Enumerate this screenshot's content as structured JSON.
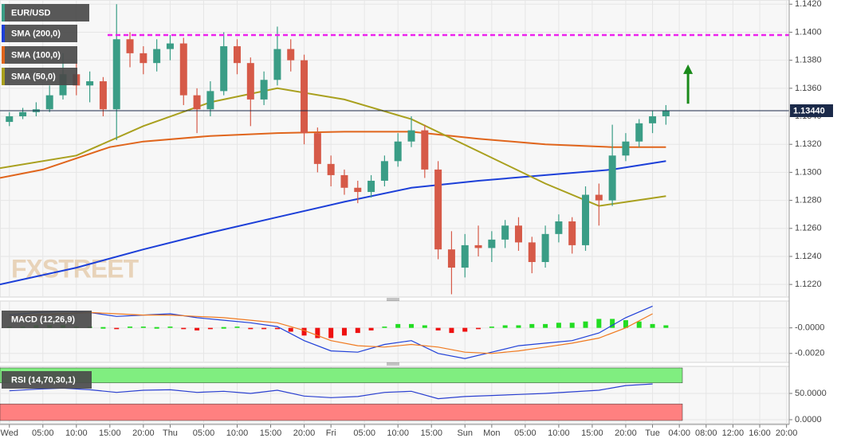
{
  "chart_data": [
    {
      "type": "candlestick",
      "symbol": "EUR/USD",
      "watermark": "FXSTREET",
      "xlim": [
        -1.4,
        116.4
      ],
      "xticks": [
        {
          "value": 0,
          "label": "Wed"
        },
        {
          "value": 5,
          "label": "05:00"
        },
        {
          "value": 10,
          "label": "10:00"
        },
        {
          "value": 15,
          "label": "15:00"
        },
        {
          "value": 20,
          "label": "20:00"
        },
        {
          "value": 24,
          "label": "Thu"
        },
        {
          "value": 29,
          "label": "05:00"
        },
        {
          "value": 34,
          "label": "10:00"
        },
        {
          "value": 39,
          "label": "15:00"
        },
        {
          "value": 44,
          "label": "20:00"
        },
        {
          "value": 48,
          "label": "Fri"
        },
        {
          "value": 53,
          "label": "05:00"
        },
        {
          "value": 58,
          "label": "10:00"
        },
        {
          "value": 63,
          "label": "15:00"
        },
        {
          "value": 68,
          "label": "Sun"
        },
        {
          "value": 72,
          "label": "Mon"
        },
        {
          "value": 77,
          "label": "05:00"
        },
        {
          "value": 82,
          "label": "10:00"
        },
        {
          "value": 87,
          "label": "15:00"
        },
        {
          "value": 92,
          "label": "20:00"
        },
        {
          "value": 96,
          "label": "Tue"
        },
        {
          "value": 100,
          "label": "04:00"
        },
        {
          "value": 104,
          "label": "08:00"
        },
        {
          "value": 108,
          "label": "12:00"
        },
        {
          "value": 112,
          "label": "16:00"
        },
        {
          "value": 116,
          "label": "20:00"
        }
      ],
      "ylim": [
        1.1211,
        1.1423
      ],
      "yticks": [
        {
          "value": 1.122,
          "label": "1.1220"
        },
        {
          "value": 1.124,
          "label": "1.1240"
        },
        {
          "value": 1.126,
          "label": "1.1260"
        },
        {
          "value": 1.128,
          "label": "1.1280"
        },
        {
          "value": 1.13,
          "label": "1.1300"
        },
        {
          "value": 1.132,
          "label": "1.1320"
        },
        {
          "value": 1.134,
          "label": "1.1340"
        },
        {
          "value": 1.136,
          "label": "1.1360"
        },
        {
          "value": 1.138,
          "label": "1.1380"
        },
        {
          "value": 1.14,
          "label": "1.1400"
        },
        {
          "value": 1.142,
          "label": "1.1420"
        }
      ],
      "grid": true,
      "candles": {
        "up_color": "#3a9d86",
        "down_color": "#d65a48",
        "x": [
          0,
          2,
          4,
          6,
          8,
          10,
          12,
          14,
          16,
          18,
          20,
          22,
          24,
          26,
          28,
          30,
          32,
          34,
          36,
          38,
          40,
          42,
          44,
          46,
          48,
          50,
          52,
          54,
          56,
          58,
          60,
          62,
          64,
          66,
          68,
          70,
          72,
          74,
          76,
          78,
          80,
          82,
          84,
          86,
          88,
          90,
          92,
          94,
          96,
          98
        ],
        "open": [
          1.1336,
          1.134,
          1.1343,
          1.1345,
          1.1355,
          1.137,
          1.1362,
          1.1365,
          1.1345,
          1.1395,
          1.1385,
          1.1378,
          1.1388,
          1.1392,
          1.1355,
          1.1345,
          1.1358,
          1.139,
          1.1378,
          1.1352,
          1.1366,
          1.1388,
          1.138,
          1.1328,
          1.1306,
          1.1298,
          1.1289,
          1.1286,
          1.1294,
          1.1308,
          1.1322,
          1.133,
          1.1302,
          1.1245,
          1.1232,
          1.1248,
          1.1246,
          1.1252,
          1.1262,
          1.125,
          1.1236,
          1.1256,
          1.1265,
          1.1248,
          1.1284,
          1.128,
          1.1312,
          1.1322,
          1.1335,
          1.134
        ],
        "high": [
          1.1343,
          1.1346,
          1.135,
          1.1362,
          1.1385,
          1.1378,
          1.1372,
          1.1368,
          1.142,
          1.14,
          1.139,
          1.1395,
          1.1398,
          1.1396,
          1.136,
          1.1365,
          1.14,
          1.1395,
          1.1382,
          1.1372,
          1.1404,
          1.1395,
          1.1384,
          1.1332,
          1.1312,
          1.1302,
          1.1294,
          1.1298,
          1.1312,
          1.1328,
          1.134,
          1.1334,
          1.1308,
          1.1258,
          1.1256,
          1.1262,
          1.1258,
          1.1266,
          1.1268,
          1.1254,
          1.1262,
          1.127,
          1.1268,
          1.129,
          1.1292,
          1.1334,
          1.1328,
          1.1338,
          1.1344,
          1.1348
        ],
        "low": [
          1.1333,
          1.1338,
          1.134,
          1.1343,
          1.1352,
          1.1355,
          1.135,
          1.134,
          1.1323,
          1.1375,
          1.137,
          1.1372,
          1.138,
          1.1348,
          1.1328,
          1.134,
          1.1355,
          1.137,
          1.1333,
          1.1348,
          1.1362,
          1.1372,
          1.132,
          1.13,
          1.129,
          1.1284,
          1.1278,
          1.1282,
          1.129,
          1.1304,
          1.1318,
          1.1296,
          1.1238,
          1.1213,
          1.1225,
          1.124,
          1.1236,
          1.1246,
          1.1244,
          1.1228,
          1.1232,
          1.125,
          1.1242,
          1.1244,
          1.1262,
          1.1276,
          1.1308,
          1.1318,
          1.1328,
          1.1334
        ],
        "close": [
          1.134,
          1.1343,
          1.1345,
          1.1355,
          1.137,
          1.1362,
          1.1365,
          1.1345,
          1.1395,
          1.1385,
          1.1378,
          1.1388,
          1.1392,
          1.1355,
          1.1345,
          1.1358,
          1.139,
          1.1378,
          1.1352,
          1.1366,
          1.1388,
          1.138,
          1.1328,
          1.1306,
          1.1298,
          1.1289,
          1.1286,
          1.1294,
          1.1308,
          1.1322,
          1.133,
          1.1302,
          1.1245,
          1.1232,
          1.1248,
          1.1246,
          1.1252,
          1.1262,
          1.125,
          1.1236,
          1.1256,
          1.1265,
          1.1248,
          1.1284,
          1.128,
          1.1312,
          1.1322,
          1.1335,
          1.134,
          1.1344
        ]
      },
      "series": [
        {
          "name": "SMA (200,0)",
          "color": "#1c3fd8",
          "x": [
            -1.4,
            10,
            20,
            30,
            40,
            50,
            60,
            70,
            80,
            90,
            98
          ],
          "values": [
            1.122,
            1.1232,
            1.1245,
            1.1257,
            1.1268,
            1.1279,
            1.1289,
            1.1294,
            1.1298,
            1.1302,
            1.1308
          ]
        },
        {
          "name": "SMA (100,0)",
          "color": "#e0651c",
          "x": [
            -1.4,
            5,
            10,
            15,
            20,
            30,
            40,
            50,
            60,
            70,
            80,
            90,
            98
          ],
          "values": [
            1.1296,
            1.1302,
            1.131,
            1.1318,
            1.1322,
            1.1326,
            1.1328,
            1.1329,
            1.1329,
            1.1324,
            1.132,
            1.1318,
            1.1318
          ]
        },
        {
          "name": "SMA (50,0)",
          "color": "#a9a01e",
          "x": [
            -1.4,
            10,
            20,
            30,
            40,
            50,
            60,
            70,
            80,
            88,
            98
          ],
          "values": [
            1.1303,
            1.1312,
            1.1333,
            1.135,
            1.136,
            1.1352,
            1.1338,
            1.1315,
            1.1292,
            1.1276,
            1.1283
          ]
        }
      ],
      "last_price": {
        "value": 1.1344,
        "label": "1.13440",
        "color": "#1b2a4a"
      },
      "resistance": {
        "value": 1.1398,
        "color": "#ee22ee"
      },
      "arrow": {
        "x": 101.3,
        "values": [
          1.1349,
          1.1377
        ],
        "color": "#1a8a1a"
      }
    },
    {
      "type": "macd",
      "title": "MACD (12,26,9)",
      "ylim": [
        -0.0027,
        0.0021
      ],
      "yticks": [
        {
          "value": 0,
          "label": "-0.0000"
        },
        {
          "value": -0.002,
          "label": "-0.0020"
        }
      ],
      "histogram": {
        "up_color": "#22dd22",
        "down_color": "#ee1111",
        "x": [
          0,
          2,
          4,
          6,
          8,
          10,
          12,
          14,
          16,
          18,
          20,
          22,
          24,
          26,
          28,
          30,
          32,
          34,
          36,
          38,
          40,
          42,
          44,
          46,
          48,
          50,
          52,
          54,
          56,
          58,
          60,
          62,
          64,
          66,
          68,
          70,
          72,
          74,
          76,
          78,
          80,
          82,
          84,
          86,
          88,
          90,
          92,
          94,
          96,
          98
        ],
        "values": [
          0.0001,
          0.0001,
          0.0002,
          0.0002,
          0.0002,
          0.0001,
          0.0001,
          0,
          -0.0001,
          0.0001,
          0.0001,
          0,
          0.0001,
          -0.0001,
          -0.0002,
          -0.0001,
          0,
          0.0001,
          -0.0001,
          -0.0001,
          -0.0001,
          -0.0003,
          -0.0006,
          -0.0008,
          -0.0008,
          -0.0006,
          -0.0004,
          -0.0002,
          0.0001,
          0.0003,
          0.0003,
          0.0002,
          -0.0002,
          -0.0004,
          -0.0003,
          -0.0001,
          0.0001,
          0.0002,
          0.0002,
          0.0003,
          0.0003,
          0.0004,
          0.0004,
          0.0005,
          0.0007,
          0.0007,
          0.0006,
          0.0005,
          0.0003,
          0.0002
        ]
      },
      "series": [
        {
          "color": "#2040d8",
          "x": [
            0,
            4,
            8,
            12,
            16,
            20,
            24,
            28,
            32,
            36,
            40,
            44,
            48,
            52,
            56,
            60,
            64,
            68,
            72,
            76,
            80,
            84,
            88,
            92,
            96
          ],
          "values": [
            0.001,
            0.0012,
            0.0013,
            0.0012,
            0.0009,
            0.001,
            0.0011,
            0.0008,
            0.0006,
            0.0004,
            0.0001,
            -0.001,
            -0.0018,
            -0.0019,
            -0.0013,
            -0.001,
            -0.002,
            -0.0024,
            -0.0019,
            -0.0014,
            -0.0012,
            -0.001,
            -0.0004,
            0.0008,
            0.0017
          ]
        },
        {
          "color": "#f07a20",
          "x": [
            0,
            4,
            8,
            12,
            16,
            20,
            24,
            28,
            32,
            36,
            40,
            44,
            48,
            52,
            56,
            60,
            64,
            68,
            72,
            76,
            80,
            84,
            88,
            92,
            96
          ],
          "values": [
            0.0008,
            0.001,
            0.0011,
            0.0012,
            0.0011,
            0.001,
            0.001,
            0.0009,
            0.0008,
            0.0006,
            0.0004,
            -0.0002,
            -0.001,
            -0.0014,
            -0.0015,
            -0.0013,
            -0.0015,
            -0.0019,
            -0.002,
            -0.0018,
            -0.0015,
            -0.0012,
            -0.0008,
            0.0,
            0.0011
          ]
        }
      ]
    },
    {
      "type": "rsi",
      "title": "RSI (14,70,30,1)",
      "ylim": [
        -7.6,
        101.5
      ],
      "yticks": [
        {
          "value": 50,
          "label": "50.0000"
        },
        {
          "value": 0,
          "label": "0.0000"
        }
      ],
      "levels": [
        30,
        70
      ],
      "band_colors": [
        "#ff8080",
        "#80ee80"
      ],
      "series": [
        {
          "color": "#2a3fd0",
          "x": [
            0,
            4,
            8,
            12,
            16,
            20,
            24,
            28,
            32,
            36,
            40,
            44,
            48,
            52,
            56,
            60,
            64,
            68,
            72,
            76,
            80,
            84,
            88,
            92,
            96
          ],
          "values": [
            55,
            58,
            60,
            57,
            52,
            56,
            57,
            52,
            54,
            50,
            56,
            45,
            42,
            44,
            52,
            54,
            40,
            44,
            46,
            48,
            50,
            53,
            56,
            65,
            68
          ]
        }
      ]
    }
  ]
}
